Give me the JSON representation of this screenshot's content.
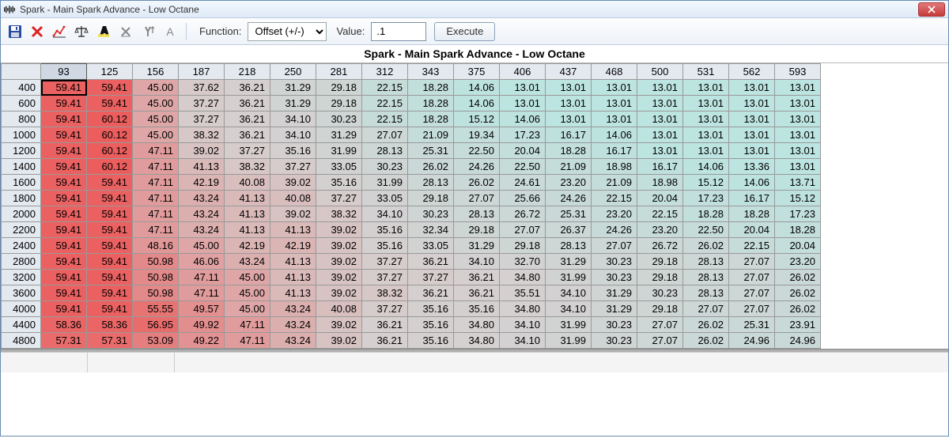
{
  "window": {
    "title": "Spark - Main Spark Advance - Low Octane",
    "close_label": "×"
  },
  "toolbar": {
    "function_label": "Function:",
    "function_selected": "Offset (+/-)",
    "value_label": "Value:",
    "value_input": ".1",
    "execute_label": "Execute"
  },
  "table": {
    "title": "Spark - Main Spark Advance - Low Octane",
    "col_headers": [
      "93",
      "125",
      "156",
      "187",
      "218",
      "250",
      "281",
      "312",
      "343",
      "375",
      "406",
      "437",
      "468",
      "500",
      "531",
      "562",
      "593"
    ],
    "row_headers": [
      "400",
      "600",
      "800",
      "1000",
      "1200",
      "1400",
      "1600",
      "1800",
      "2000",
      "2200",
      "2400",
      "2800",
      "3200",
      "3600",
      "4000",
      "4400",
      "4800"
    ],
    "selected_col_index": 0,
    "selected_row_index": 0,
    "cells": [
      [
        59.41,
        59.41,
        45.0,
        37.62,
        36.21,
        31.29,
        29.18,
        22.15,
        18.28,
        14.06,
        13.01,
        13.01,
        13.01,
        13.01,
        13.01,
        13.01,
        13.01
      ],
      [
        59.41,
        59.41,
        45.0,
        37.27,
        36.21,
        31.29,
        29.18,
        22.15,
        18.28,
        14.06,
        13.01,
        13.01,
        13.01,
        13.01,
        13.01,
        13.01,
        13.01
      ],
      [
        59.41,
        60.12,
        45.0,
        37.27,
        36.21,
        34.1,
        30.23,
        22.15,
        18.28,
        15.12,
        14.06,
        13.01,
        13.01,
        13.01,
        13.01,
        13.01,
        13.01
      ],
      [
        59.41,
        60.12,
        45.0,
        38.32,
        36.21,
        34.1,
        31.29,
        27.07,
        21.09,
        19.34,
        17.23,
        16.17,
        14.06,
        13.01,
        13.01,
        13.01,
        13.01
      ],
      [
        59.41,
        60.12,
        47.11,
        39.02,
        37.27,
        35.16,
        31.99,
        28.13,
        25.31,
        22.5,
        20.04,
        18.28,
        16.17,
        13.01,
        13.01,
        13.01,
        13.01
      ],
      [
        59.41,
        60.12,
        47.11,
        41.13,
        38.32,
        37.27,
        33.05,
        30.23,
        26.02,
        24.26,
        22.5,
        21.09,
        18.98,
        16.17,
        14.06,
        13.36,
        13.01
      ],
      [
        59.41,
        59.41,
        47.11,
        42.19,
        40.08,
        39.02,
        35.16,
        31.99,
        28.13,
        26.02,
        24.61,
        23.2,
        21.09,
        18.98,
        15.12,
        14.06,
        13.71
      ],
      [
        59.41,
        59.41,
        47.11,
        43.24,
        41.13,
        40.08,
        37.27,
        33.05,
        29.18,
        27.07,
        25.66,
        24.26,
        22.15,
        20.04,
        17.23,
        16.17,
        15.12
      ],
      [
        59.41,
        59.41,
        47.11,
        43.24,
        41.13,
        39.02,
        38.32,
        34.1,
        30.23,
        28.13,
        26.72,
        25.31,
        23.2,
        22.15,
        18.28,
        18.28,
        17.23
      ],
      [
        59.41,
        59.41,
        47.11,
        43.24,
        41.13,
        41.13,
        39.02,
        35.16,
        32.34,
        29.18,
        27.07,
        26.37,
        24.26,
        23.2,
        22.5,
        20.04,
        18.28
      ],
      [
        59.41,
        59.41,
        48.16,
        45.0,
        42.19,
        42.19,
        39.02,
        35.16,
        33.05,
        31.29,
        29.18,
        28.13,
        27.07,
        26.72,
        26.02,
        22.15,
        20.04
      ],
      [
        59.41,
        59.41,
        50.98,
        46.06,
        43.24,
        41.13,
        39.02,
        37.27,
        36.21,
        34.1,
        32.7,
        31.29,
        30.23,
        29.18,
        28.13,
        27.07,
        23.2
      ],
      [
        59.41,
        59.41,
        50.98,
        47.11,
        45.0,
        41.13,
        39.02,
        37.27,
        37.27,
        36.21,
        34.8,
        31.99,
        30.23,
        29.18,
        28.13,
        27.07,
        26.02
      ],
      [
        59.41,
        59.41,
        50.98,
        47.11,
        45.0,
        41.13,
        39.02,
        38.32,
        36.21,
        36.21,
        35.51,
        34.1,
        31.29,
        30.23,
        28.13,
        27.07,
        26.02
      ],
      [
        59.41,
        59.41,
        55.55,
        49.57,
        45.0,
        43.24,
        40.08,
        37.27,
        35.16,
        35.16,
        34.8,
        34.1,
        31.29,
        29.18,
        27.07,
        27.07,
        26.02
      ],
      [
        58.36,
        58.36,
        56.95,
        49.92,
        47.11,
        43.24,
        39.02,
        36.21,
        35.16,
        34.8,
        34.1,
        31.99,
        30.23,
        27.07,
        26.02,
        25.31,
        23.91
      ],
      [
        57.31,
        57.31,
        53.09,
        49.22,
        47.11,
        43.24,
        39.02,
        36.21,
        35.16,
        34.8,
        34.1,
        31.99,
        30.23,
        27.07,
        26.02,
        24.96,
        24.96
      ]
    ],
    "heat": {
      "min": 13.01,
      "max": 60.12,
      "low_color": "#bce4e0",
      "mid_color": "#d6cfcf",
      "high_color": "#ec5d5d"
    }
  }
}
